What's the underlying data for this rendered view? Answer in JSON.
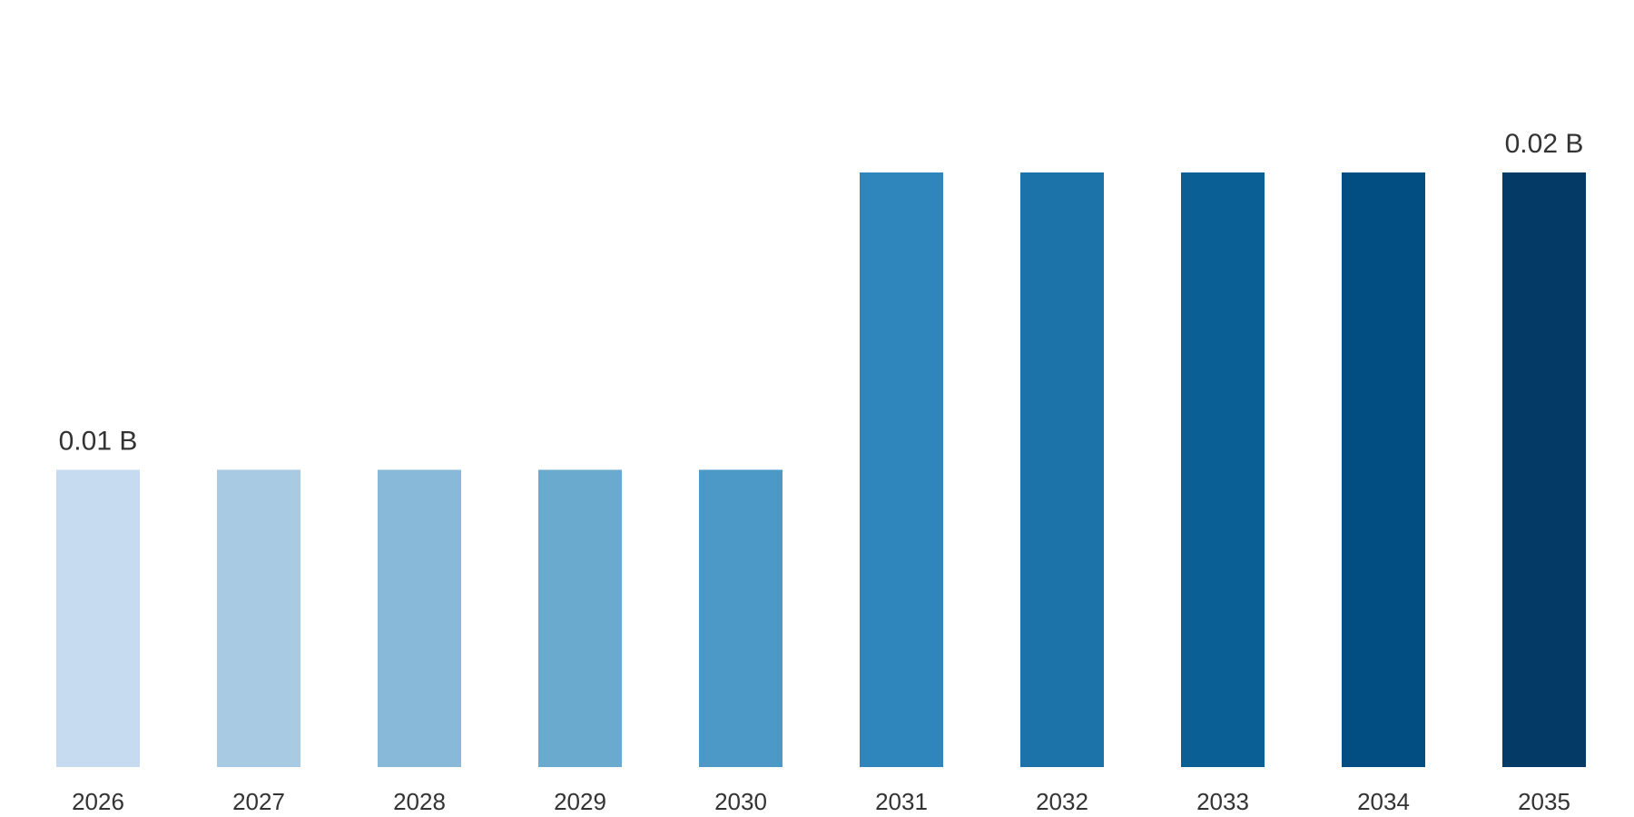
{
  "chart_data": {
    "type": "bar",
    "categories": [
      "2026",
      "2027",
      "2028",
      "2029",
      "2030",
      "2031",
      "2032",
      "2033",
      "2034",
      "2035"
    ],
    "values": [
      0.01,
      0.01,
      0.01,
      0.01,
      0.01,
      0.02,
      0.02,
      0.02,
      0.02,
      0.02
    ],
    "data_labels": [
      "0.01 B",
      "",
      "",
      "",
      "",
      "",
      "",
      "",
      "",
      "0.02 B"
    ],
    "colors": [
      "#c6dbef",
      "#a8cae3",
      "#89b9d9",
      "#6aaacf",
      "#4c99c7",
      "#2e86bc",
      "#1c73a9",
      "#0a5f94",
      "#024d82",
      "#033a66"
    ],
    "title": "",
    "xlabel": "",
    "ylabel": "",
    "ylim": [
      0,
      0.02
    ],
    "grid": false,
    "legend": "none"
  }
}
